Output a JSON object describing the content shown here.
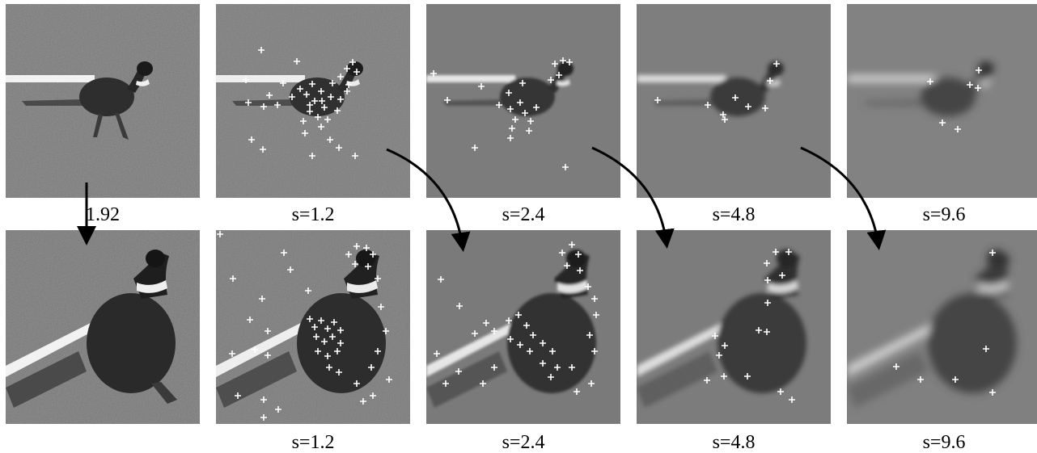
{
  "figure": {
    "scale_ratio_label": "1.92",
    "top_row": {
      "original_label": "",
      "scales": [
        "s=1.2",
        "s=2.4",
        "s=4.8",
        "s=9.6"
      ]
    },
    "bottom_row": {
      "original_label": "",
      "scales": [
        "s=1.2",
        "s=2.4",
        "s=4.8",
        "s=9.6"
      ]
    },
    "colors": {
      "background": "#ffffff",
      "keypoint_marker": "#ffffff",
      "arrow": "#000000"
    },
    "marker_icon": "plus-keypoint-icon"
  }
}
